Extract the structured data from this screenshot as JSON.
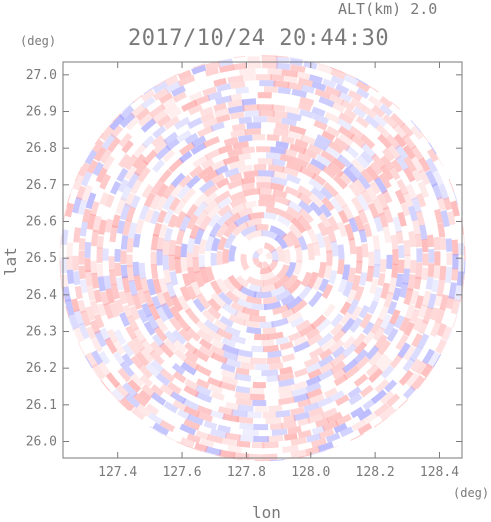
{
  "header": {
    "altitude_label": "ALT(km) 2.0",
    "timestamp": "2017/10/24 20:44:30"
  },
  "chart_data": {
    "type": "heatmap",
    "title": "2017/10/24 20:44:30",
    "subtitle": "ALT(km) 2.0",
    "xlabel": "lon",
    "ylabel": "lat",
    "xunit": "(deg)",
    "yunit": "(deg)",
    "xlim": [
      127.23,
      128.47
    ],
    "ylim": [
      25.955,
      27.035
    ],
    "xticks": [
      "127.4",
      "127.6",
      "127.8",
      "128.0",
      "128.2",
      "128.4"
    ],
    "yticks": [
      "26.0",
      "26.1",
      "26.2",
      "26.3",
      "26.4",
      "26.5",
      "26.6",
      "26.7",
      "26.8",
      "26.9",
      "27.0"
    ],
    "radar_center": {
      "lon": 127.85,
      "lat": 26.5
    },
    "colors": {
      "positive": "#ff9a9a",
      "negative": "#9a9aff",
      "axis": "#7a7a7a"
    },
    "grid": false
  }
}
